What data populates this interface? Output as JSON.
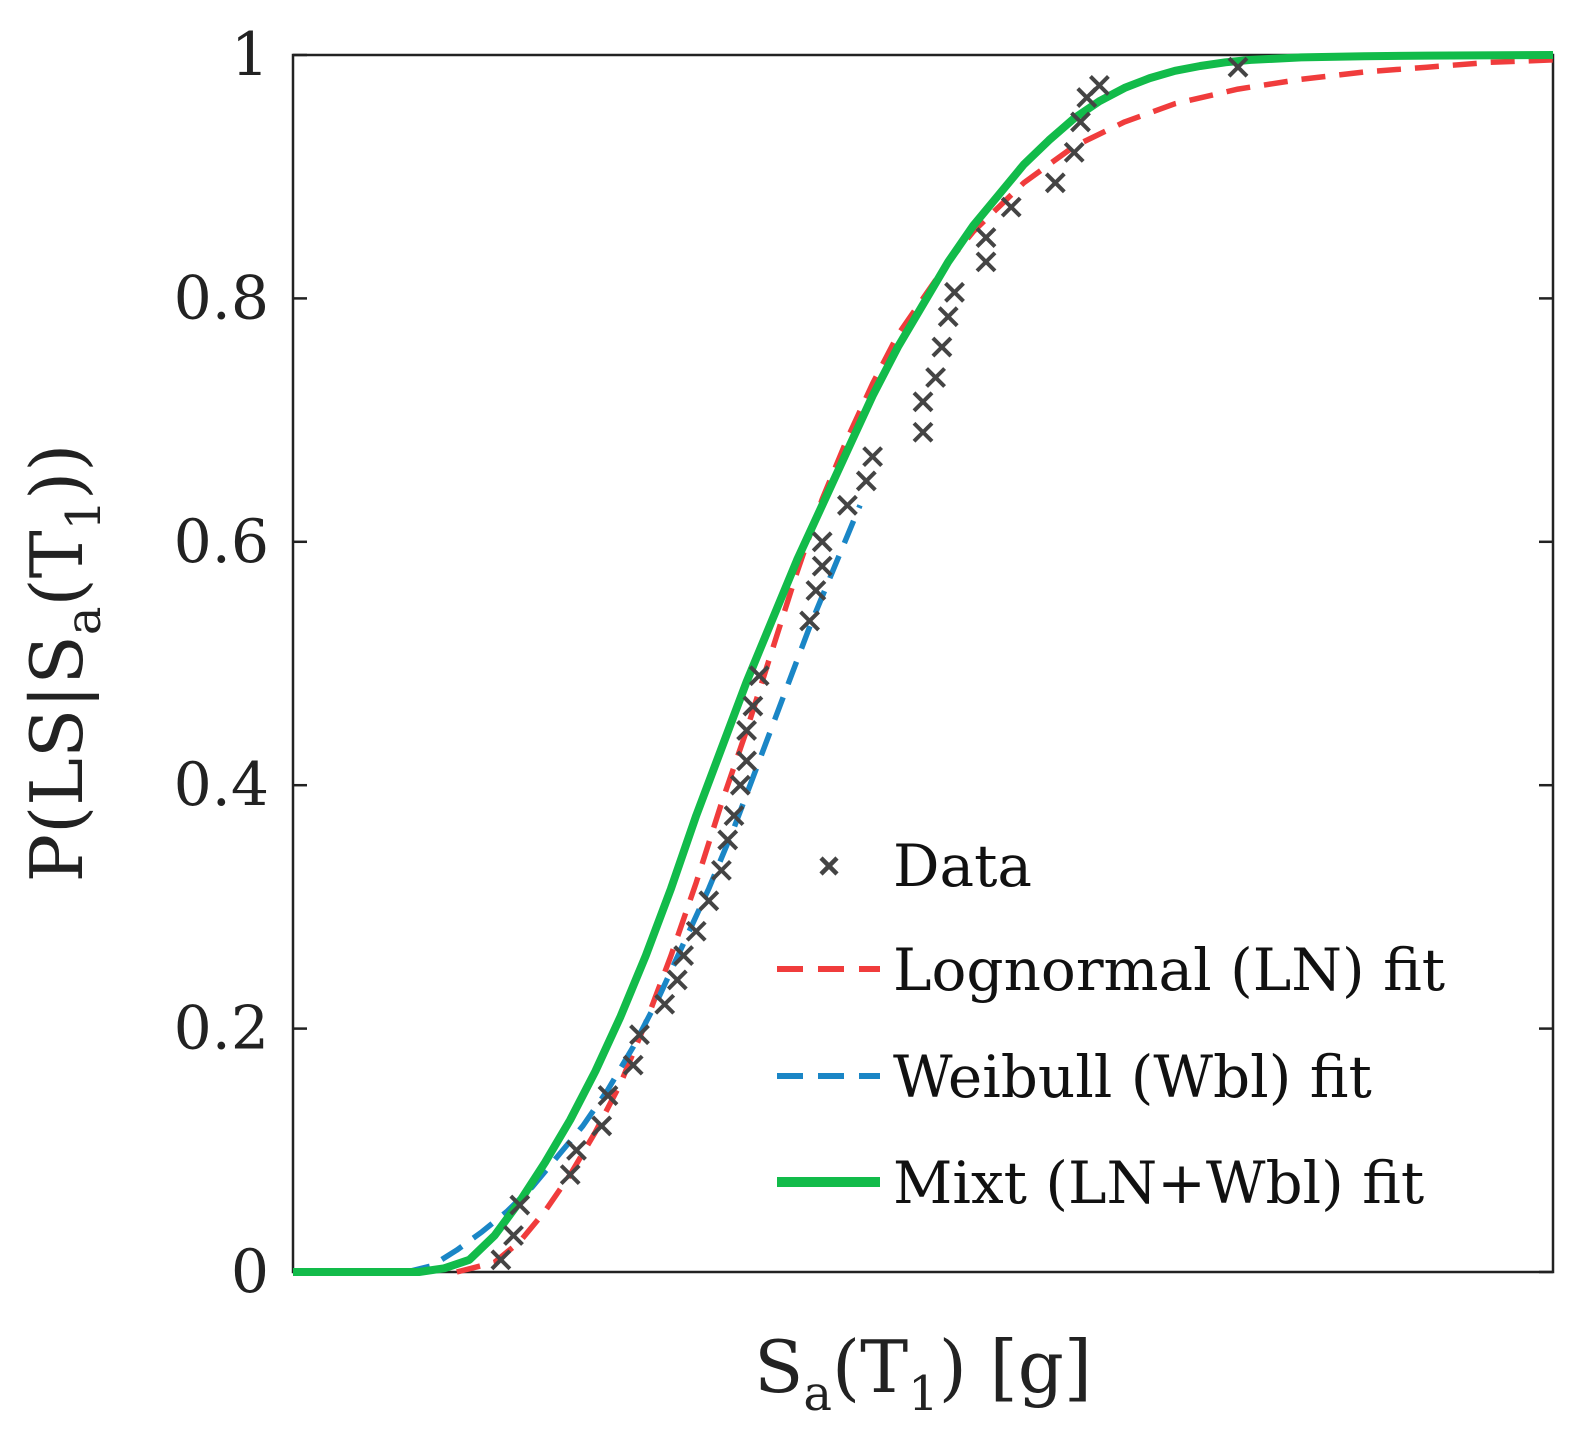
{
  "chart_data": {
    "type": "line",
    "title": "",
    "xlabel": {
      "main": "S",
      "sub1": "a",
      "mid": "(T",
      "sub2": "1",
      "tail": ") [g]"
    },
    "ylabel": {
      "main": "P(LS|S",
      "sub1": "a",
      "mid": "(T",
      "sub2": "1",
      "tail": "))"
    },
    "xlim": [
      0,
      1
    ],
    "ylim": [
      0,
      1
    ],
    "x_ticks_shown": false,
    "yticks": [
      0,
      0.2,
      0.4,
      0.6,
      0.8,
      1
    ],
    "ytick_labels": [
      "0",
      "0.2",
      "0.4",
      "0.6",
      "0.8",
      "1"
    ],
    "grid": false,
    "legend_position": "bottom-right",
    "colors": {
      "data": "#444444",
      "lognormal": "#f03c3c",
      "weibull": "#1a86c6",
      "mixt": "#12bb4a",
      "axis": "#222222"
    },
    "series": [
      {
        "id": "data",
        "name": "Data",
        "style": "marker-x",
        "x": [
          0.165,
          0.175,
          0.18,
          0.22,
          0.225,
          0.245,
          0.25,
          0.27,
          0.275,
          0.295,
          0.305,
          0.31,
          0.32,
          0.33,
          0.34,
          0.345,
          0.35,
          0.355,
          0.36,
          0.36,
          0.365,
          0.37,
          0.41,
          0.415,
          0.42,
          0.42,
          0.44,
          0.455,
          0.46,
          0.5,
          0.5,
          0.51,
          0.515,
          0.52,
          0.525,
          0.55,
          0.55,
          0.57,
          0.605,
          0.62,
          0.625,
          0.63,
          0.64,
          0.75
        ],
        "y": [
          0.01,
          0.03,
          0.055,
          0.08,
          0.1,
          0.12,
          0.145,
          0.17,
          0.195,
          0.22,
          0.24,
          0.26,
          0.28,
          0.305,
          0.33,
          0.355,
          0.375,
          0.4,
          0.42,
          0.445,
          0.465,
          0.49,
          0.535,
          0.56,
          0.58,
          0.6,
          0.63,
          0.65,
          0.67,
          0.69,
          0.715,
          0.735,
          0.76,
          0.785,
          0.805,
          0.83,
          0.85,
          0.875,
          0.895,
          0.92,
          0.945,
          0.965,
          0.975,
          0.99
        ]
      },
      {
        "id": "lognormal",
        "name": "Lognormal (LN) fit",
        "style": "dashed",
        "x": [
          0.13,
          0.16,
          0.18,
          0.2,
          0.22,
          0.24,
          0.26,
          0.28,
          0.3,
          0.32,
          0.34,
          0.36,
          0.38,
          0.4,
          0.42,
          0.44,
          0.46,
          0.48,
          0.5,
          0.52,
          0.54,
          0.56,
          0.58,
          0.6,
          0.62,
          0.64,
          0.66,
          0.7,
          0.75,
          0.8,
          0.85,
          0.9,
          0.95,
          1.0
        ],
        "y": [
          0.0,
          0.008,
          0.025,
          0.05,
          0.08,
          0.115,
          0.155,
          0.205,
          0.26,
          0.32,
          0.385,
          0.445,
          0.51,
          0.575,
          0.635,
          0.685,
          0.73,
          0.77,
          0.8,
          0.83,
          0.855,
          0.875,
          0.895,
          0.91,
          0.925,
          0.935,
          0.945,
          0.96,
          0.972,
          0.98,
          0.986,
          0.99,
          0.994,
          0.996
        ]
      },
      {
        "id": "weibull",
        "name": "Weibull (Wbl) fit",
        "style": "dashed",
        "x": [
          0.09,
          0.11,
          0.13,
          0.15,
          0.17,
          0.19,
          0.21,
          0.23,
          0.25,
          0.27,
          0.29,
          0.31,
          0.33,
          0.35,
          0.37,
          0.39,
          0.41,
          0.43,
          0.45
        ],
        "y": [
          0.0,
          0.005,
          0.018,
          0.033,
          0.05,
          0.07,
          0.095,
          0.12,
          0.15,
          0.185,
          0.225,
          0.27,
          0.315,
          0.365,
          0.42,
          0.475,
          0.53,
          0.58,
          0.63
        ]
      },
      {
        "id": "mixt",
        "name": "Mixt (LN+Wbl) fit",
        "style": "solid",
        "x": [
          0.0,
          0.1,
          0.12,
          0.14,
          0.16,
          0.18,
          0.2,
          0.22,
          0.24,
          0.26,
          0.28,
          0.3,
          0.32,
          0.34,
          0.36,
          0.38,
          0.4,
          0.42,
          0.44,
          0.46,
          0.48,
          0.5,
          0.52,
          0.54,
          0.56,
          0.58,
          0.6,
          0.62,
          0.64,
          0.66,
          0.68,
          0.7,
          0.72,
          0.74,
          0.76,
          0.8,
          0.85,
          0.9,
          1.0
        ],
        "y": [
          0.0,
          0.0,
          0.003,
          0.01,
          0.03,
          0.058,
          0.09,
          0.125,
          0.165,
          0.21,
          0.26,
          0.315,
          0.375,
          0.43,
          0.485,
          0.535,
          0.585,
          0.63,
          0.675,
          0.72,
          0.76,
          0.795,
          0.83,
          0.86,
          0.885,
          0.91,
          0.93,
          0.948,
          0.962,
          0.973,
          0.981,
          0.987,
          0.991,
          0.994,
          0.996,
          0.998,
          0.999,
          0.9995,
          1.0
        ]
      }
    ]
  }
}
